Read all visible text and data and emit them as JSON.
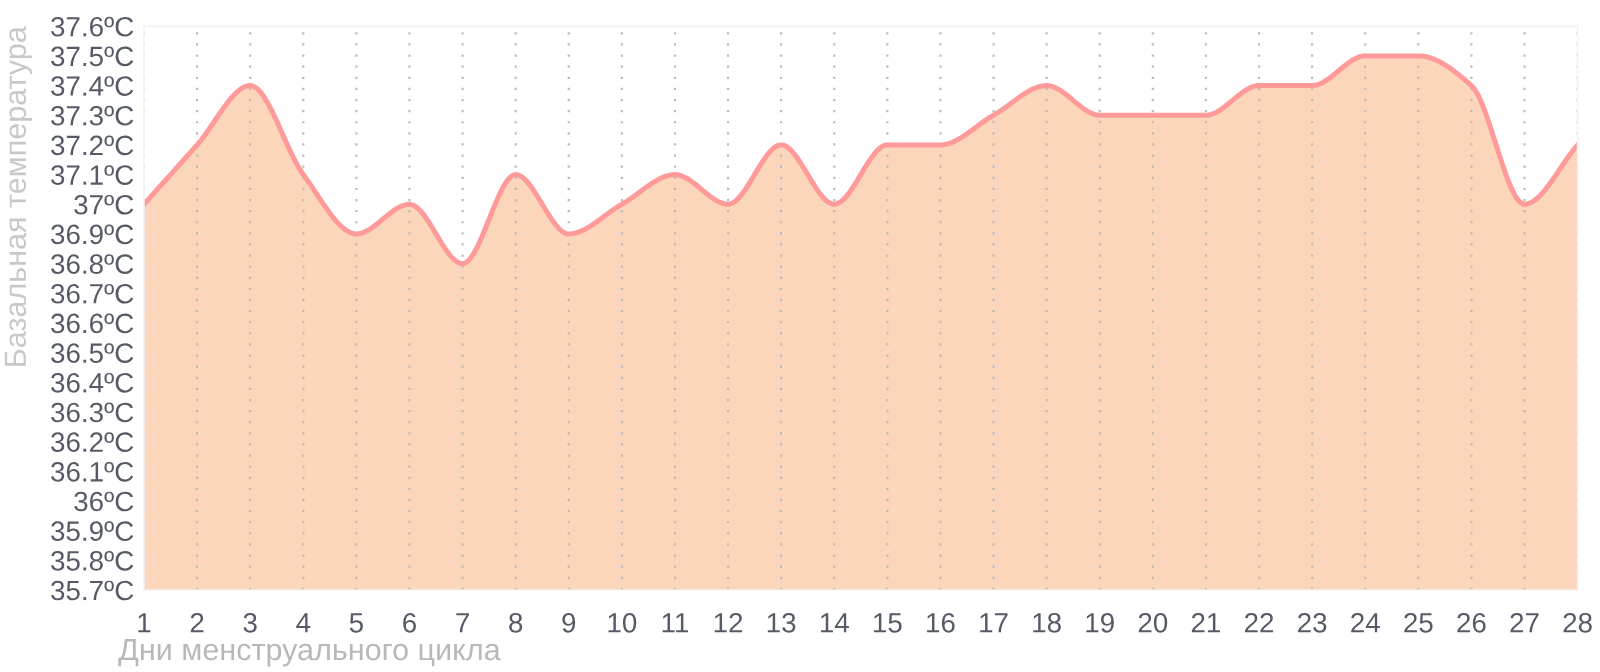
{
  "chart_data": {
    "type": "area",
    "xlabel": "Дни менструального цикла",
    "ylabel": "Базальная температура",
    "x": [
      1,
      2,
      3,
      4,
      5,
      6,
      7,
      8,
      9,
      10,
      11,
      12,
      13,
      14,
      15,
      16,
      17,
      18,
      19,
      20,
      21,
      22,
      23,
      24,
      25,
      26,
      27,
      28
    ],
    "series": [
      {
        "color": "#ff9a9a",
        "values": [
          37.0,
          37.2,
          37.4,
          37.1,
          36.9,
          37.0,
          36.8,
          37.1,
          36.9,
          37.0,
          37.1,
          37.0,
          37.2,
          37.0,
          37.2,
          37.2,
          37.3,
          37.4,
          37.3,
          37.3,
          37.3,
          37.4,
          37.4,
          37.5,
          37.5,
          37.4,
          37.0,
          37.2
        ]
      }
    ],
    "xlim": [
      1,
      28
    ],
    "xticks": [
      1,
      2,
      3,
      4,
      5,
      6,
      7,
      8,
      9,
      10,
      11,
      12,
      13,
      14,
      15,
      16,
      17,
      18,
      19,
      20,
      21,
      22,
      23,
      24,
      25,
      26,
      27,
      28
    ],
    "ylim": [
      35.7,
      37.6
    ],
    "yticks": [
      {
        "value": 35.7,
        "label": "35.7ºC"
      },
      {
        "value": 35.8,
        "label": "35.8ºC"
      },
      {
        "value": 35.9,
        "label": "35.9ºC"
      },
      {
        "value": 36.0,
        "label": "36ºC"
      },
      {
        "value": 36.1,
        "label": "36.1ºC"
      },
      {
        "value": 36.2,
        "label": "36.2ºC"
      },
      {
        "value": 36.3,
        "label": "36.3ºC"
      },
      {
        "value": 36.4,
        "label": "36.4ºC"
      },
      {
        "value": 36.5,
        "label": "36.5ºC"
      },
      {
        "value": 36.6,
        "label": "36.6ºC"
      },
      {
        "value": 36.7,
        "label": "36.7ºC"
      },
      {
        "value": 36.8,
        "label": "36.8ºC"
      },
      {
        "value": 36.9,
        "label": "36.9ºC"
      },
      {
        "value": 37.0,
        "label": "37ºC"
      },
      {
        "value": 37.1,
        "label": "37.1ºC"
      },
      {
        "value": 37.2,
        "label": "37.2ºC"
      },
      {
        "value": 37.3,
        "label": "37.3ºC"
      },
      {
        "value": 37.4,
        "label": "37.4ºC"
      },
      {
        "value": 37.5,
        "label": "37.5ºC"
      },
      {
        "value": 37.6,
        "label": "37.6ºC"
      }
    ],
    "grid": "x",
    "legend": false
  }
}
